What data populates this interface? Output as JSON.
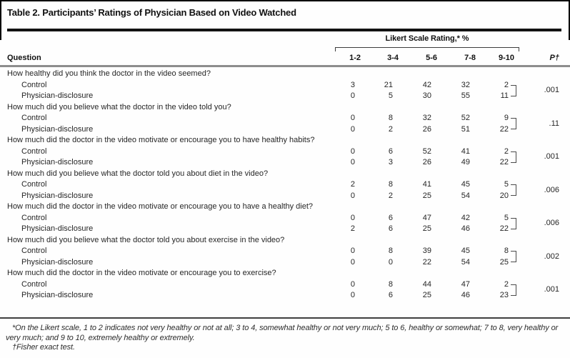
{
  "title": "Table 2. Participants’ Ratings of Physician Based on Video Watched",
  "table": {
    "group_header": "Likert Scale Rating,* %",
    "question_col": "Question",
    "likert_cols": [
      "1-2",
      "3-4",
      "5-6",
      "7-8",
      "9-10"
    ],
    "p_col": "P†",
    "row_labels": [
      "Control",
      "Physician-disclosure"
    ],
    "groups": [
      {
        "question": "How healthy did you think the doctor in the video seemed?",
        "control": [
          "3",
          "21",
          "42",
          "32",
          "2"
        ],
        "disclosure": [
          "0",
          "5",
          "30",
          "55",
          "11"
        ],
        "p": ".001"
      },
      {
        "question": "How much did you believe what the doctor in the video told you?",
        "control": [
          "0",
          "8",
          "32",
          "52",
          "9"
        ],
        "disclosure": [
          "0",
          "2",
          "26",
          "51",
          "22"
        ],
        "p": ".11"
      },
      {
        "question": "How much did the doctor in the video motivate or encourage you to have healthy habits?",
        "control": [
          "0",
          "6",
          "52",
          "41",
          "2"
        ],
        "disclosure": [
          "0",
          "3",
          "26",
          "49",
          "22"
        ],
        "p": ".001"
      },
      {
        "question": "How much did you believe what the doctor told you about diet in the video?",
        "control": [
          "2",
          "8",
          "41",
          "45",
          "5"
        ],
        "disclosure": [
          "0",
          "2",
          "25",
          "54",
          "20"
        ],
        "p": ".006"
      },
      {
        "question": "How much did the doctor in the video motivate or encourage you to have a healthy diet?",
        "control": [
          "0",
          "6",
          "47",
          "42",
          "5"
        ],
        "disclosure": [
          "2",
          "6",
          "25",
          "46",
          "22"
        ],
        "p": ".006"
      },
      {
        "question": "How much did you believe what the doctor told you about exercise in the video?",
        "control": [
          "0",
          "8",
          "39",
          "45",
          "8"
        ],
        "disclosure": [
          "0",
          "0",
          "22",
          "54",
          "25"
        ],
        "p": ".002"
      },
      {
        "question": "How much did the doctor in the video motivate or encourage you to exercise?",
        "control": [
          "0",
          "8",
          "44",
          "47",
          "2"
        ],
        "disclosure": [
          "0",
          "6",
          "25",
          "46",
          "23"
        ],
        "p": ".001"
      }
    ]
  },
  "footnotes": {
    "likert": "*On the Likert scale, 1 to 2 indicates not very healthy or not at all; 3 to 4, somewhat healthy or not very much; 5 to 6, healthy or somewhat; 7 to 8, very healthy or very much; and 9 to 10, extremely healthy or extremely.",
    "fisher": "†Fisher exact test."
  }
}
